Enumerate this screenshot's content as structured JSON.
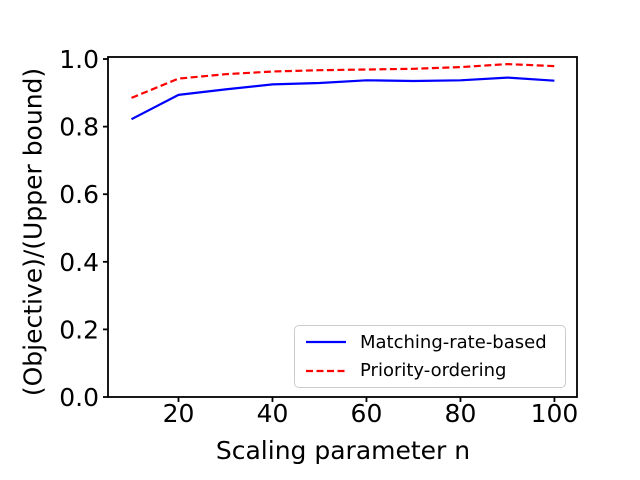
{
  "figure": {
    "background": "#ffffff",
    "frame_color": "#000000"
  },
  "chart_data": {
    "type": "line",
    "title": "",
    "xlabel": "Scaling parameter n",
    "ylabel": "(Objective)/(Upper bound)",
    "x": [
      10,
      20,
      30,
      40,
      50,
      60,
      70,
      80,
      90,
      100
    ],
    "series": [
      {
        "name": "Matching-rate-based",
        "color": "#0000ff",
        "style": "solid",
        "values": [
          0.822,
          0.894,
          0.91,
          0.925,
          0.929,
          0.937,
          0.935,
          0.937,
          0.945,
          0.936
        ]
      },
      {
        "name": "Priority-ordering",
        "color": "#ff0000",
        "style": "dashed",
        "values": [
          0.885,
          0.942,
          0.955,
          0.963,
          0.967,
          0.969,
          0.971,
          0.976,
          0.985,
          0.979
        ]
      }
    ],
    "xlim": [
      5,
      104.8
    ],
    "ylim": [
      0,
      1.006
    ],
    "xticks": {
      "values": [
        20,
        40,
        60,
        80,
        100
      ],
      "labels": [
        "20",
        "40",
        "60",
        "80",
        "100"
      ]
    },
    "yticks": {
      "values": [
        0.0,
        0.2,
        0.4,
        0.6,
        0.8,
        1.0
      ],
      "labels": [
        "0.0",
        "0.2",
        "0.4",
        "0.6",
        "0.8",
        "1.0"
      ]
    },
    "grid": false,
    "legend": {
      "position": "lower right"
    }
  }
}
